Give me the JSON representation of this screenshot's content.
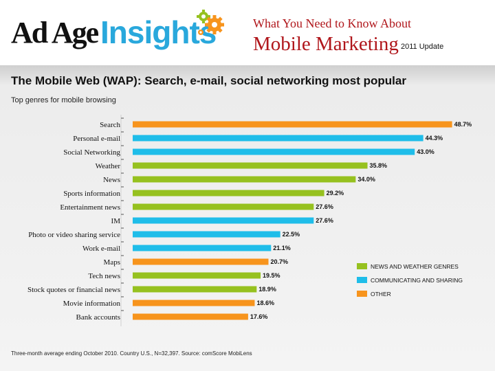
{
  "header": {
    "logo_brand": "Ad Age",
    "logo_product": "Insights",
    "title_top": "What You Need to Know About",
    "title_main": "Mobile Marketing",
    "title_update": "2011 Update"
  },
  "headline": "The Mobile Web (WAP): Search, e-mail, social networking most popular",
  "subhead": "Top genres for mobile browsing",
  "footer": "Three-month average ending October 2010. Country U.S., N=32,397. Source: comScore MobiLens",
  "colors": {
    "news_weather": "#96c11f",
    "communicating_sharing": "#1fbde9",
    "other": "#f7941d",
    "title_red": "#b0161b",
    "logo_blue": "#29a8dc"
  },
  "chart_data": {
    "type": "bar",
    "orientation": "horizontal",
    "categories": [
      "Search",
      "Personal e-mail",
      "Social Networking",
      "Weather",
      "News",
      "Sports information",
      "Entertainment news",
      "IM",
      "Photo or video sharing service",
      "Work e-mail",
      "Maps",
      "Tech news",
      "Stock quotes or financial news",
      "Movie information",
      "Bank accounts"
    ],
    "values": [
      48.7,
      44.3,
      43.0,
      35.8,
      34.0,
      29.2,
      27.6,
      27.6,
      22.5,
      21.1,
      20.7,
      19.5,
      18.9,
      18.6,
      17.6
    ],
    "value_labels": [
      "48.7%",
      "44.3%",
      "43.0%",
      "35.8%",
      "34.0%",
      "29.2%",
      "27.6%",
      "27.6%",
      "22.5%",
      "21.1%",
      "20.7%",
      "19.5%",
      "18.9%",
      "18.6%",
      "17.6%"
    ],
    "groups": [
      "other",
      "communicating_sharing",
      "communicating_sharing",
      "news_weather",
      "news_weather",
      "news_weather",
      "news_weather",
      "communicating_sharing",
      "communicating_sharing",
      "communicating_sharing",
      "other",
      "news_weather",
      "news_weather",
      "other",
      "other"
    ],
    "legend": [
      {
        "key": "news_weather",
        "label": "NEWS AND WEATHER GENRES"
      },
      {
        "key": "communicating_sharing",
        "label": "COMMUNICATING AND SHARING"
      },
      {
        "key": "other",
        "label": "OTHER"
      }
    ],
    "legend_position": "right",
    "grid": false,
    "xlim": [
      0,
      50
    ]
  }
}
